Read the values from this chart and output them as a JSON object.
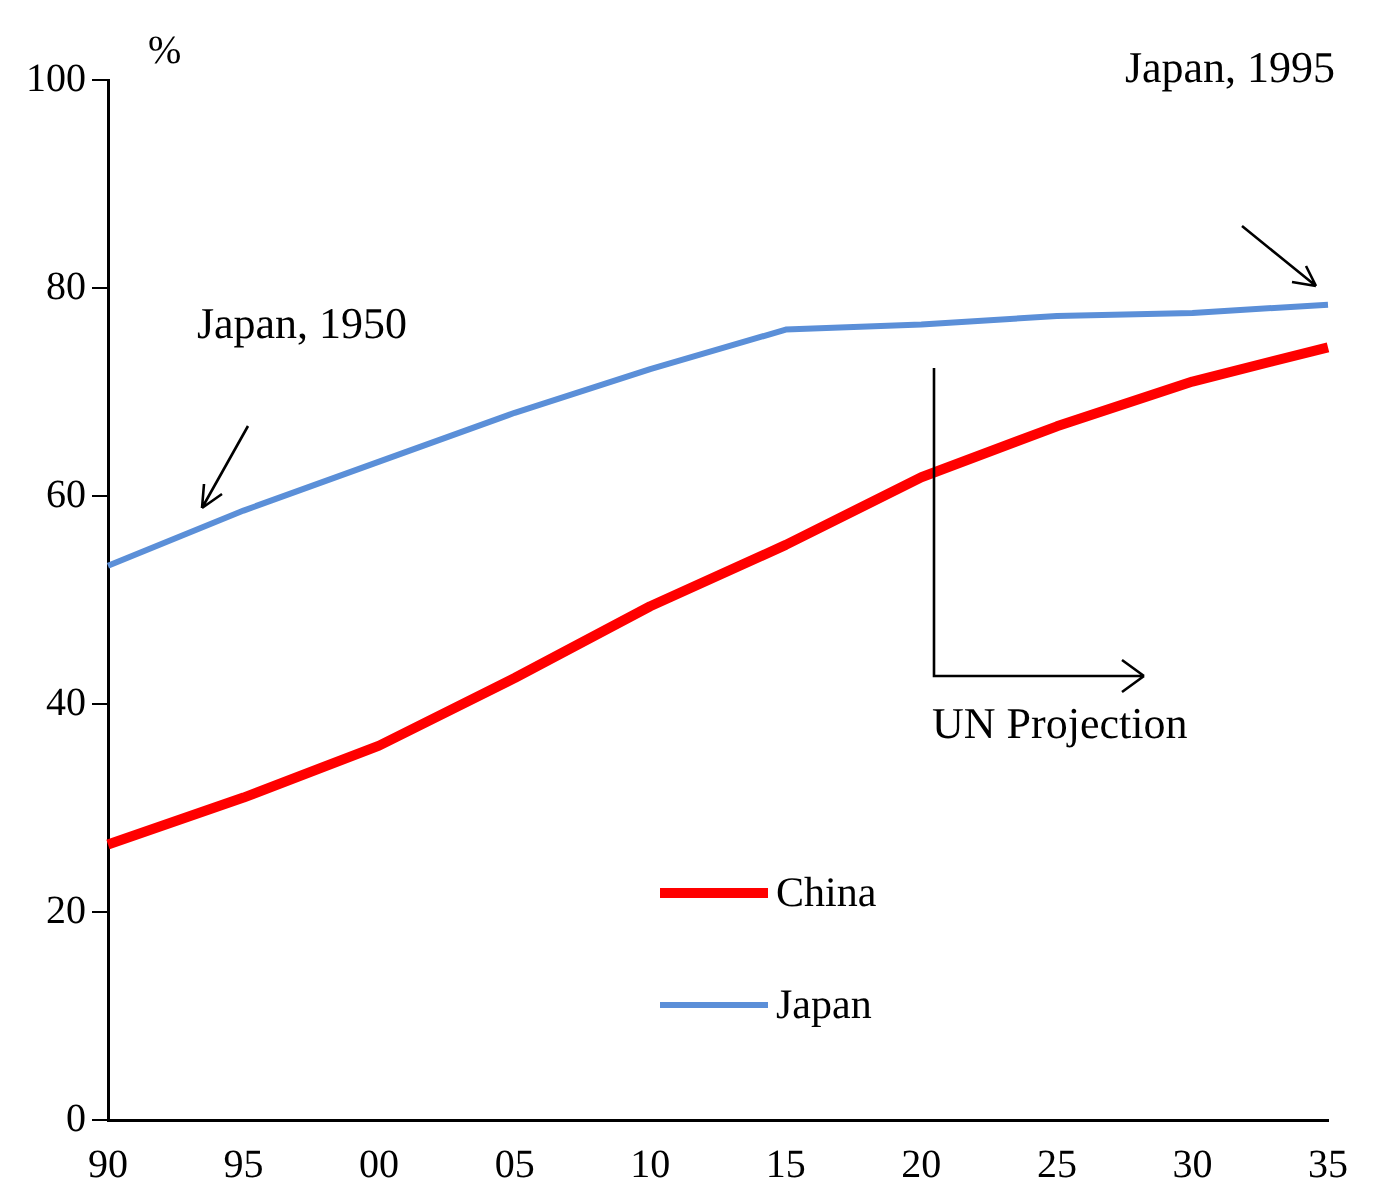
{
  "chart_data": {
    "type": "line",
    "ylabel": "%",
    "categories": [
      "90",
      "95",
      "00",
      "05",
      "10",
      "15",
      "20",
      "25",
      "30",
      "35"
    ],
    "series": [
      {
        "name": "China",
        "color": "#ff0000",
        "values": [
          26.5,
          31,
          36,
          42.5,
          49.4,
          55.3,
          61.8,
          66.7,
          71,
          74.3
        ]
      },
      {
        "name": "Japan",
        "color": "#5b8fd8",
        "values": [
          53.3,
          58.6,
          63.3,
          68,
          72.2,
          76,
          76.5,
          77.3,
          77.6,
          78.4
        ]
      }
    ],
    "ylim": [
      0,
      100
    ],
    "yticks": [
      0,
      20,
      40,
      60,
      80,
      100
    ],
    "grid": false,
    "legend": "bottom",
    "marker": "none",
    "line_style": "solid",
    "annotations": [
      "Japan, 1950",
      "Japan, 1995",
      "UN Projection"
    ]
  }
}
